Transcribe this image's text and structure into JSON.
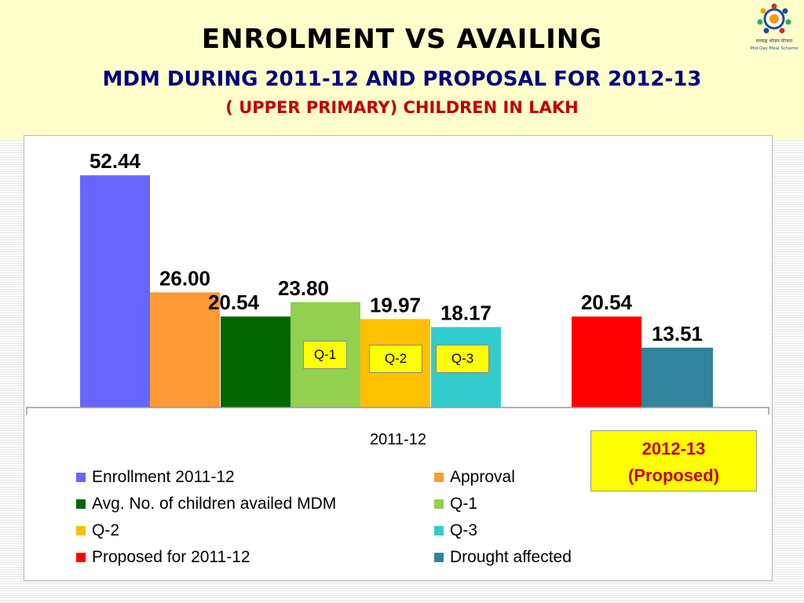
{
  "header": {
    "title": "ENROLMENT VS AVAILING",
    "subtitle": "MDM DURING  2011-12  AND PROPOSAL FOR 2012-13",
    "units": "( UPPER PRIMARY) CHILDREN IN LAKH"
  },
  "logo": {
    "text_line1": "मध्याह्न भोजन योजना",
    "text_line2": "Mid Day Meal Scheme"
  },
  "colors": {
    "header_bg": "#ffffcc",
    "title_navy": "#000080",
    "units_red": "#c00000",
    "q_label_bg": "#ffff00"
  },
  "chart_data": {
    "type": "bar",
    "categories": [
      "2011-12"
    ],
    "series": [
      {
        "name": "Enrollment 2011-12",
        "value": 52.44,
        "label": "52.44",
        "color": "#6666ff"
      },
      {
        "name": "Approval",
        "value": 26.0,
        "label": "26.00",
        "color": "#ff9933"
      },
      {
        "name": "Avg. No. of children availed MDM",
        "value": 20.54,
        "label": "20.54",
        "color": "#006600"
      },
      {
        "name": "Q-1",
        "value": 23.8,
        "label": "23.80",
        "color": "#92d050"
      },
      {
        "name": "Q-2",
        "value": 19.97,
        "label": "19.97",
        "color": "#ffc000"
      },
      {
        "name": "Q-3",
        "value": 18.17,
        "label": "18.17",
        "color": "#33cccc"
      },
      {
        "name": "Proposed for 2011-12",
        "value": 20.54,
        "label": "20.54",
        "color": "#ff0000"
      },
      {
        "name": "Drought affected",
        "value": 13.51,
        "label": "13.51",
        "color": "#31849b"
      }
    ],
    "bar_annotations": [
      "Q-1",
      "Q-2",
      "Q-3"
    ],
    "xlabel": "2011-12",
    "proposed_label_line1": "2012-13",
    "proposed_label_line2": "(Proposed)",
    "ylim": [
      0,
      55
    ],
    "grid": false,
    "legend_placement": "bottom"
  }
}
